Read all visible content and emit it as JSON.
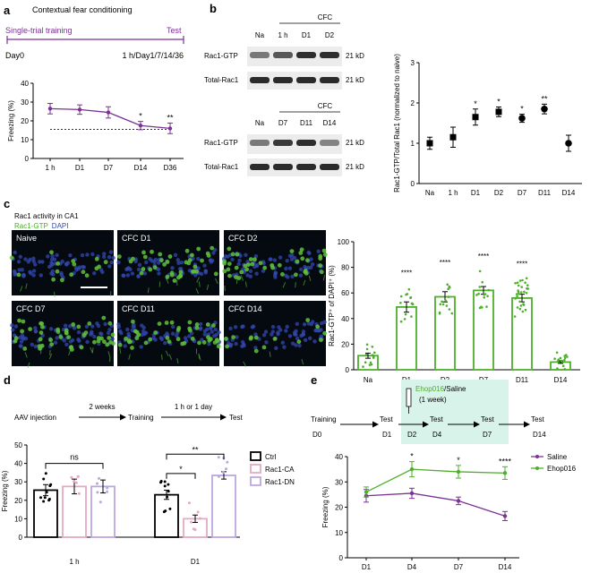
{
  "panel_labels": {
    "a": "a",
    "b": "b",
    "c": "c",
    "d": "d",
    "e": "e"
  },
  "colors": {
    "purple": "#7b3294",
    "green": "#4daf2a",
    "pink": "#e7a8c4",
    "lavender": "#b9a7e0",
    "black": "#000000",
    "band": "#a6a6a6",
    "cell_green": "#5ec23a",
    "dapi_blue": "#3348b0",
    "highlight": "#d8f3e9"
  },
  "panel_a": {
    "title": "Contextual fear conditioning",
    "training_label": "Single-trial training",
    "test_label": "Test",
    "day0_label": "Day0",
    "timepoints_label": "1 h/Day1/7/14/36"
  },
  "panel_b": {
    "cfc_label": "CFC",
    "row1_label": "Rac1-GTP",
    "row2_label": "Total-Rac1",
    "kd_label": "21 kD",
    "blot1_lanes": [
      "Na",
      "1 h",
      "D1",
      "D2"
    ],
    "blot2_lanes": [
      "Na",
      "D7",
      "D11",
      "D14"
    ]
  },
  "panel_c": {
    "title": "Rac1 activity in CA1",
    "stain_green": "Rac1-GTP",
    "stain_blue": "DAPI",
    "images": [
      "Naive",
      "CFC D1",
      "CFC D2",
      "CFC D7",
      "CFC D11",
      "CFC D14"
    ]
  },
  "panel_d": {
    "protocol": [
      "AAV injection",
      "2 weeks",
      "Training",
      "1 h or 1 day",
      "Test"
    ],
    "legend": [
      "Ctrl",
      "Rac1-CA",
      "Rac1-DN"
    ]
  },
  "panel_e": {
    "drug_label": "Ehop016",
    "drug_rest": "/Saline",
    "duration": "(1 week)",
    "protocol_top": [
      "Training",
      "Test",
      "Test",
      "Test",
      "Test"
    ],
    "protocol_bottom": [
      "D0",
      "D1",
      "D2",
      "D4",
      "D7",
      "D14"
    ]
  },
  "chart_data": [
    {
      "panel": "a",
      "type": "line",
      "categories": [
        "1 h",
        "D1",
        "D7",
        "D14",
        "D36"
      ],
      "series": [
        {
          "values": [
            26.5,
            26,
            24.5,
            17.5,
            16
          ],
          "errors": [
            2.8,
            2.5,
            3,
            2.2,
            2.8
          ]
        }
      ],
      "baseline": 15.5,
      "ylabel": "Freezing (%)",
      "ylim": [
        0,
        40
      ],
      "yticks": [
        0,
        10,
        20,
        30,
        40
      ],
      "significance": [
        "",
        "",
        "",
        "*",
        "**"
      ]
    },
    {
      "panel": "b",
      "type": "scatter",
      "categories": [
        "Na",
        "1 h",
        "D1",
        "D2",
        "D7",
        "D11",
        "D14"
      ],
      "series": [
        {
          "values": [
            1.0,
            1.15,
            1.65,
            1.78,
            1.62,
            1.85,
            1.0
          ],
          "errors": [
            0.15,
            0.25,
            0.2,
            0.12,
            0.1,
            0.12,
            0.2
          ]
        }
      ],
      "ylabel": "Rac1-GTP/Total Rac1 (normalized to naive)",
      "ylim": [
        0,
        3
      ],
      "yticks": [
        0,
        1,
        2,
        3
      ],
      "significance": [
        "",
        "",
        "*",
        "*",
        "*",
        "**",
        ""
      ]
    },
    {
      "panel": "c",
      "type": "bar",
      "categories": [
        "Na",
        "D1",
        "D2",
        "D7",
        "D11",
        "D14"
      ],
      "values": [
        11,
        49,
        57,
        62,
        56,
        6
      ],
      "errors": [
        2,
        4,
        4,
        3,
        3,
        1
      ],
      "ylabel": "Rac1-GTP⁺ of DAPI⁺ (%)",
      "ylim": [
        0,
        100
      ],
      "yticks": [
        0,
        20,
        40,
        60,
        80,
        100
      ],
      "significance": [
        "",
        "****",
        "****",
        "****",
        "****",
        ""
      ]
    },
    {
      "panel": "d",
      "type": "bar",
      "categories": [
        "1 h",
        "D1"
      ],
      "series": [
        {
          "name": "Ctrl",
          "values": [
            25.5,
            23
          ],
          "errors": [
            3,
            2.5
          ]
        },
        {
          "name": "Rac1-CA",
          "values": [
            27.5,
            10
          ],
          "errors": [
            4,
            2
          ]
        },
        {
          "name": "Rac1-DN",
          "values": [
            27.5,
            33.5
          ],
          "errors": [
            3.5,
            2
          ]
        }
      ],
      "ylabel": "Freezing (%)",
      "ylim": [
        0,
        50
      ],
      "yticks": [
        0,
        10,
        20,
        30,
        40,
        50
      ],
      "comparisons": [
        {
          "group": "1 h",
          "from": "Ctrl",
          "to": "Rac1-DN",
          "label": "ns"
        },
        {
          "group": "D1",
          "from": "Ctrl",
          "to": "Rac1-CA",
          "label": "*"
        },
        {
          "group": "D1",
          "from": "Ctrl",
          "to": "Rac1-DN",
          "label": "**"
        }
      ]
    },
    {
      "panel": "e",
      "type": "line",
      "categories": [
        "D1",
        "D4",
        "D7",
        "D14"
      ],
      "series": [
        {
          "name": "Saline",
          "values": [
            24.5,
            25.5,
            22.5,
            16.5
          ],
          "errors": [
            2.5,
            2,
            1.5,
            1.8
          ]
        },
        {
          "name": "Ehop016",
          "values": [
            26,
            35,
            34,
            33.5
          ],
          "errors": [
            2,
            3,
            2.5,
            2.5
          ]
        }
      ],
      "ylabel": "Freezing (%)",
      "ylim": [
        0,
        40
      ],
      "yticks": [
        0,
        10,
        20,
        30,
        40
      ],
      "significance": [
        "",
        "*",
        "*",
        "****"
      ]
    }
  ]
}
